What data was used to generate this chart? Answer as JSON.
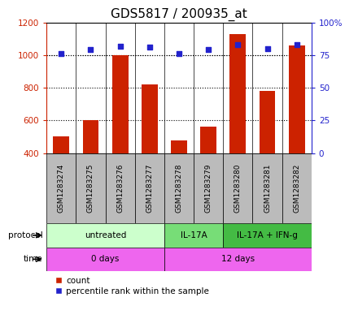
{
  "title": "GDS5817 / 200935_at",
  "samples": [
    "GSM1283274",
    "GSM1283275",
    "GSM1283276",
    "GSM1283277",
    "GSM1283278",
    "GSM1283279",
    "GSM1283280",
    "GSM1283281",
    "GSM1283282"
  ],
  "counts": [
    500,
    600,
    1000,
    820,
    480,
    560,
    1130,
    780,
    1060
  ],
  "percentiles": [
    76,
    79,
    82,
    81,
    76,
    79,
    83,
    80,
    83
  ],
  "ylim_left": [
    400,
    1200
  ],
  "ylim_right": [
    0,
    100
  ],
  "yticks_left": [
    400,
    600,
    800,
    1000,
    1200
  ],
  "yticks_right": [
    0,
    25,
    50,
    75,
    100
  ],
  "ytick_right_labels": [
    "0",
    "25",
    "50",
    "75",
    "100%"
  ],
  "protocol_labels": [
    "untreated",
    "IL-17A",
    "IL-17A + IFN-g"
  ],
  "protocol_ranges": [
    [
      0,
      4
    ],
    [
      4,
      6
    ],
    [
      6,
      9
    ]
  ],
  "protocol_colors": [
    "#ccffcc",
    "#77dd77",
    "#44bb44"
  ],
  "time_labels": [
    "0 days",
    "12 days"
  ],
  "time_ranges": [
    [
      0,
      4
    ],
    [
      4,
      9
    ]
  ],
  "time_color": "#ee66ee",
  "bar_color": "#cc2200",
  "scatter_color": "#2222cc",
  "bar_width": 0.55,
  "label_count": "count",
  "label_percentile": "percentile rank within the sample",
  "axis_color_left": "#cc2200",
  "axis_color_right": "#2222cc",
  "sample_box_color": "#bbbbbb",
  "title_fontsize": 11,
  "tick_fontsize": 7.5,
  "sample_fontsize": 6.5
}
